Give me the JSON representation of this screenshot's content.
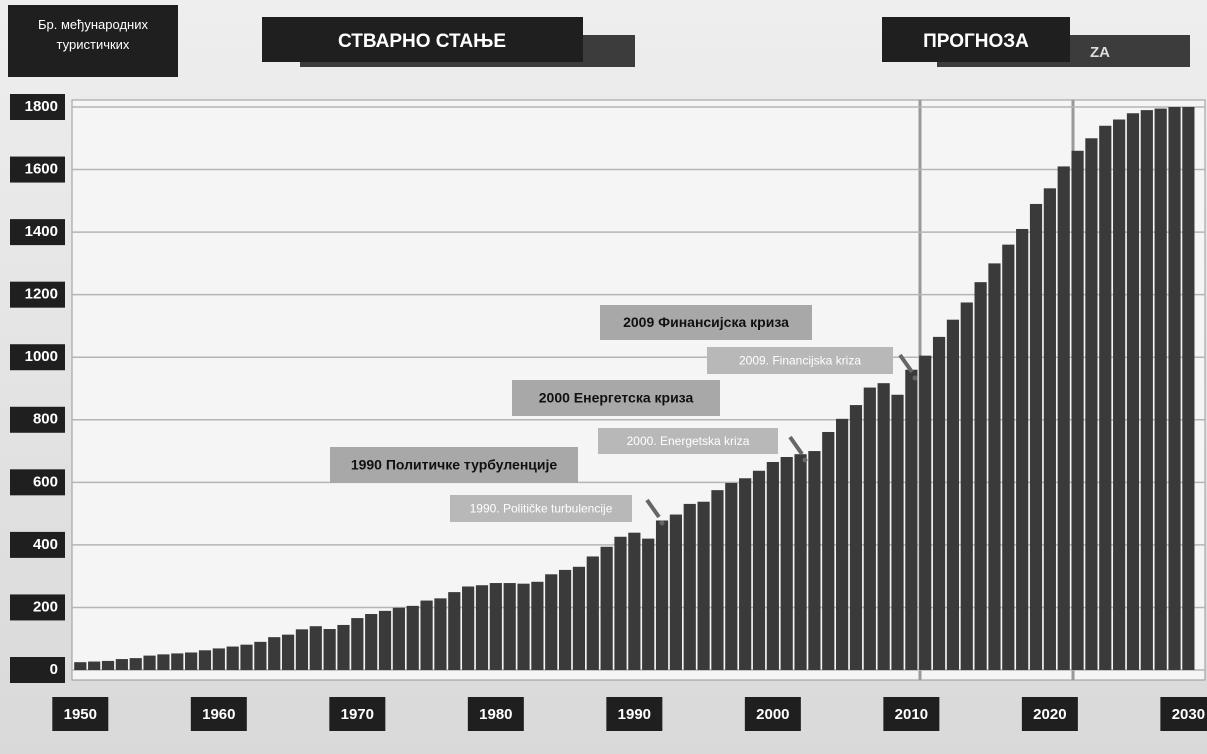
{
  "chart_data": {
    "type": "bar",
    "ylabel": "Бр. међународних туристичких",
    "headers": [
      "СТВАРНО СТАЊЕ",
      "ПРОГНОЗА",
      "ZA"
    ],
    "annotations": [
      "2009 Финансијска криза",
      "2009. Financijska kriza",
      "2000 Енергетска криза",
      "2000. Energetska kriza",
      "1990 Политичке турбуленције",
      "1990. Političke turbulencije"
    ],
    "x": [
      1950,
      1951,
      1952,
      1953,
      1954,
      1955,
      1956,
      1957,
      1958,
      1959,
      1960,
      1961,
      1962,
      1963,
      1964,
      1965,
      1966,
      1967,
      1968,
      1969,
      1970,
      1971,
      1972,
      1973,
      1974,
      1975,
      1976,
      1977,
      1978,
      1979,
      1980,
      1981,
      1982,
      1983,
      1984,
      1985,
      1986,
      1987,
      1988,
      1989,
      1990,
      1991,
      1992,
      1993,
      1994,
      1995,
      1996,
      1997,
      1998,
      1999,
      2000,
      2001,
      2002,
      2003,
      2004,
      2005,
      2006,
      2007,
      2008,
      2009,
      2010,
      2011,
      2012,
      2013,
      2014,
      2015,
      2016,
      2017,
      2018,
      2019,
      2020,
      2021,
      2022,
      2023,
      2024,
      2025,
      2026,
      2027,
      2028,
      2029,
      2030
    ],
    "values": [
      25,
      27,
      29,
      35,
      38,
      46,
      50,
      53,
      56,
      63,
      69,
      75,
      81,
      90,
      105,
      113,
      130,
      140,
      131,
      144,
      166,
      179,
      189,
      199,
      205,
      222,
      229,
      249,
      267,
      271,
      278,
      278,
      276,
      282,
      306,
      320,
      330,
      363,
      394,
      426,
      439,
      420,
      478,
      497,
      531,
      538,
      575,
      598,
      613,
      637,
      665,
      681,
      690,
      700,
      761,
      803,
      847,
      903,
      917,
      880,
      960,
      1005,
      1065,
      1120,
      1175,
      1240,
      1300,
      1360,
      1410,
      1490,
      1540,
      1610,
      1660,
      1700,
      1740,
      1760,
      1780,
      1790,
      1795,
      1800,
      1800
    ],
    "color": "#3a3a3a",
    "xlim": [
      1949.4,
      2031.2
    ],
    "xticks": [
      1950,
      1960,
      1970,
      1980,
      1990,
      2000,
      2010,
      2020,
      2030
    ],
    "ylim": [
      0,
      1800
    ],
    "yticks": [
      0,
      200,
      400,
      600,
      800,
      1000,
      1200,
      1400,
      1600,
      1800
    ],
    "grid": true
  }
}
